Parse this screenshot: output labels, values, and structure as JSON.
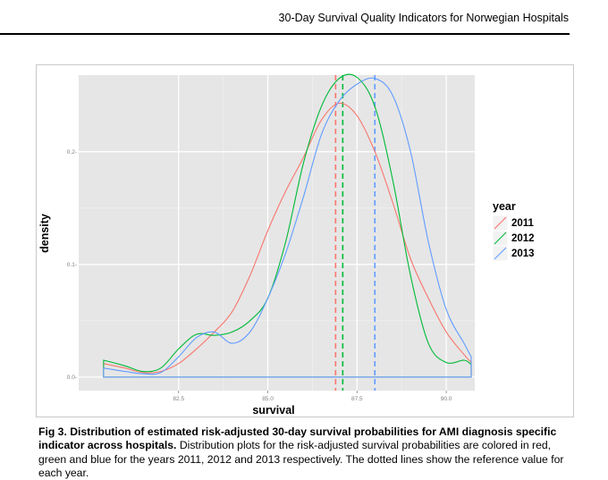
{
  "header": {
    "running_title": "30-Day Survival Quality Indicators for Norwegian Hospitals"
  },
  "caption": {
    "label": "Fig 3.",
    "bold_text": "Distribution of estimated risk-adjusted 30-day survival probabilities for AMI diagnosis specific indicator across hospitals.",
    "body_text": "Distribution plots for the risk-adjusted survival probabilities are colored in red, green and blue for the years 2011, 2012 and 2013 respectively. The dotted lines show the reference value for each year."
  },
  "chart_data": {
    "type": "area",
    "xlabel": "survival",
    "ylabel": "density",
    "xlim": [
      79.7,
      90.8
    ],
    "ylim": [
      -0.012,
      0.268
    ],
    "x_ticks": [
      82.5,
      85.0,
      87.5,
      90.0
    ],
    "x_tick_labels": [
      "82.5",
      "85.0",
      "87.5",
      "90.0"
    ],
    "y_ticks": [
      0.0,
      0.1,
      0.2
    ],
    "y_tick_labels": [
      "0.0-",
      "0.1-",
      "0.2-"
    ],
    "grid": true,
    "legend": {
      "title": "year",
      "position": "right"
    },
    "series": [
      {
        "name": "2011",
        "color": "#F8766D",
        "reference": 86.9,
        "x": [
          80.4,
          81.0,
          81.5,
          82.0,
          82.5,
          83.0,
          83.5,
          84.0,
          84.5,
          85.0,
          85.5,
          86.0,
          86.5,
          87.0,
          87.5,
          88.0,
          88.5,
          89.0,
          89.5,
          90.0,
          90.5,
          90.7
        ],
        "y": [
          0.012,
          0.008,
          0.004,
          0.005,
          0.012,
          0.025,
          0.04,
          0.058,
          0.09,
          0.13,
          0.165,
          0.195,
          0.228,
          0.243,
          0.232,
          0.2,
          0.155,
          0.105,
          0.07,
          0.04,
          0.02,
          0.013
        ]
      },
      {
        "name": "2012",
        "color": "#00BA38",
        "reference": 87.1,
        "x": [
          80.4,
          81.0,
          81.5,
          82.0,
          82.5,
          83.0,
          83.5,
          84.0,
          84.5,
          85.0,
          85.5,
          86.0,
          86.5,
          87.0,
          87.5,
          88.0,
          88.5,
          89.0,
          89.5,
          90.0,
          90.5,
          90.7
        ],
        "y": [
          0.015,
          0.01,
          0.005,
          0.008,
          0.025,
          0.038,
          0.037,
          0.04,
          0.05,
          0.07,
          0.12,
          0.19,
          0.24,
          0.265,
          0.266,
          0.24,
          0.175,
          0.09,
          0.03,
          0.013,
          0.015,
          0.011
        ]
      },
      {
        "name": "2013",
        "color": "#619CFF",
        "reference": 88.0,
        "x": [
          80.4,
          81.0,
          81.5,
          82.0,
          82.5,
          83.0,
          83.5,
          84.0,
          84.5,
          85.0,
          85.5,
          86.0,
          86.5,
          87.0,
          87.5,
          88.0,
          88.5,
          89.0,
          89.5,
          90.0,
          90.5,
          90.7
        ],
        "y": [
          0.008,
          0.005,
          0.003,
          0.004,
          0.018,
          0.035,
          0.04,
          0.03,
          0.04,
          0.07,
          0.11,
          0.16,
          0.215,
          0.245,
          0.26,
          0.265,
          0.25,
          0.2,
          0.12,
          0.06,
          0.03,
          0.018
        ]
      }
    ]
  }
}
